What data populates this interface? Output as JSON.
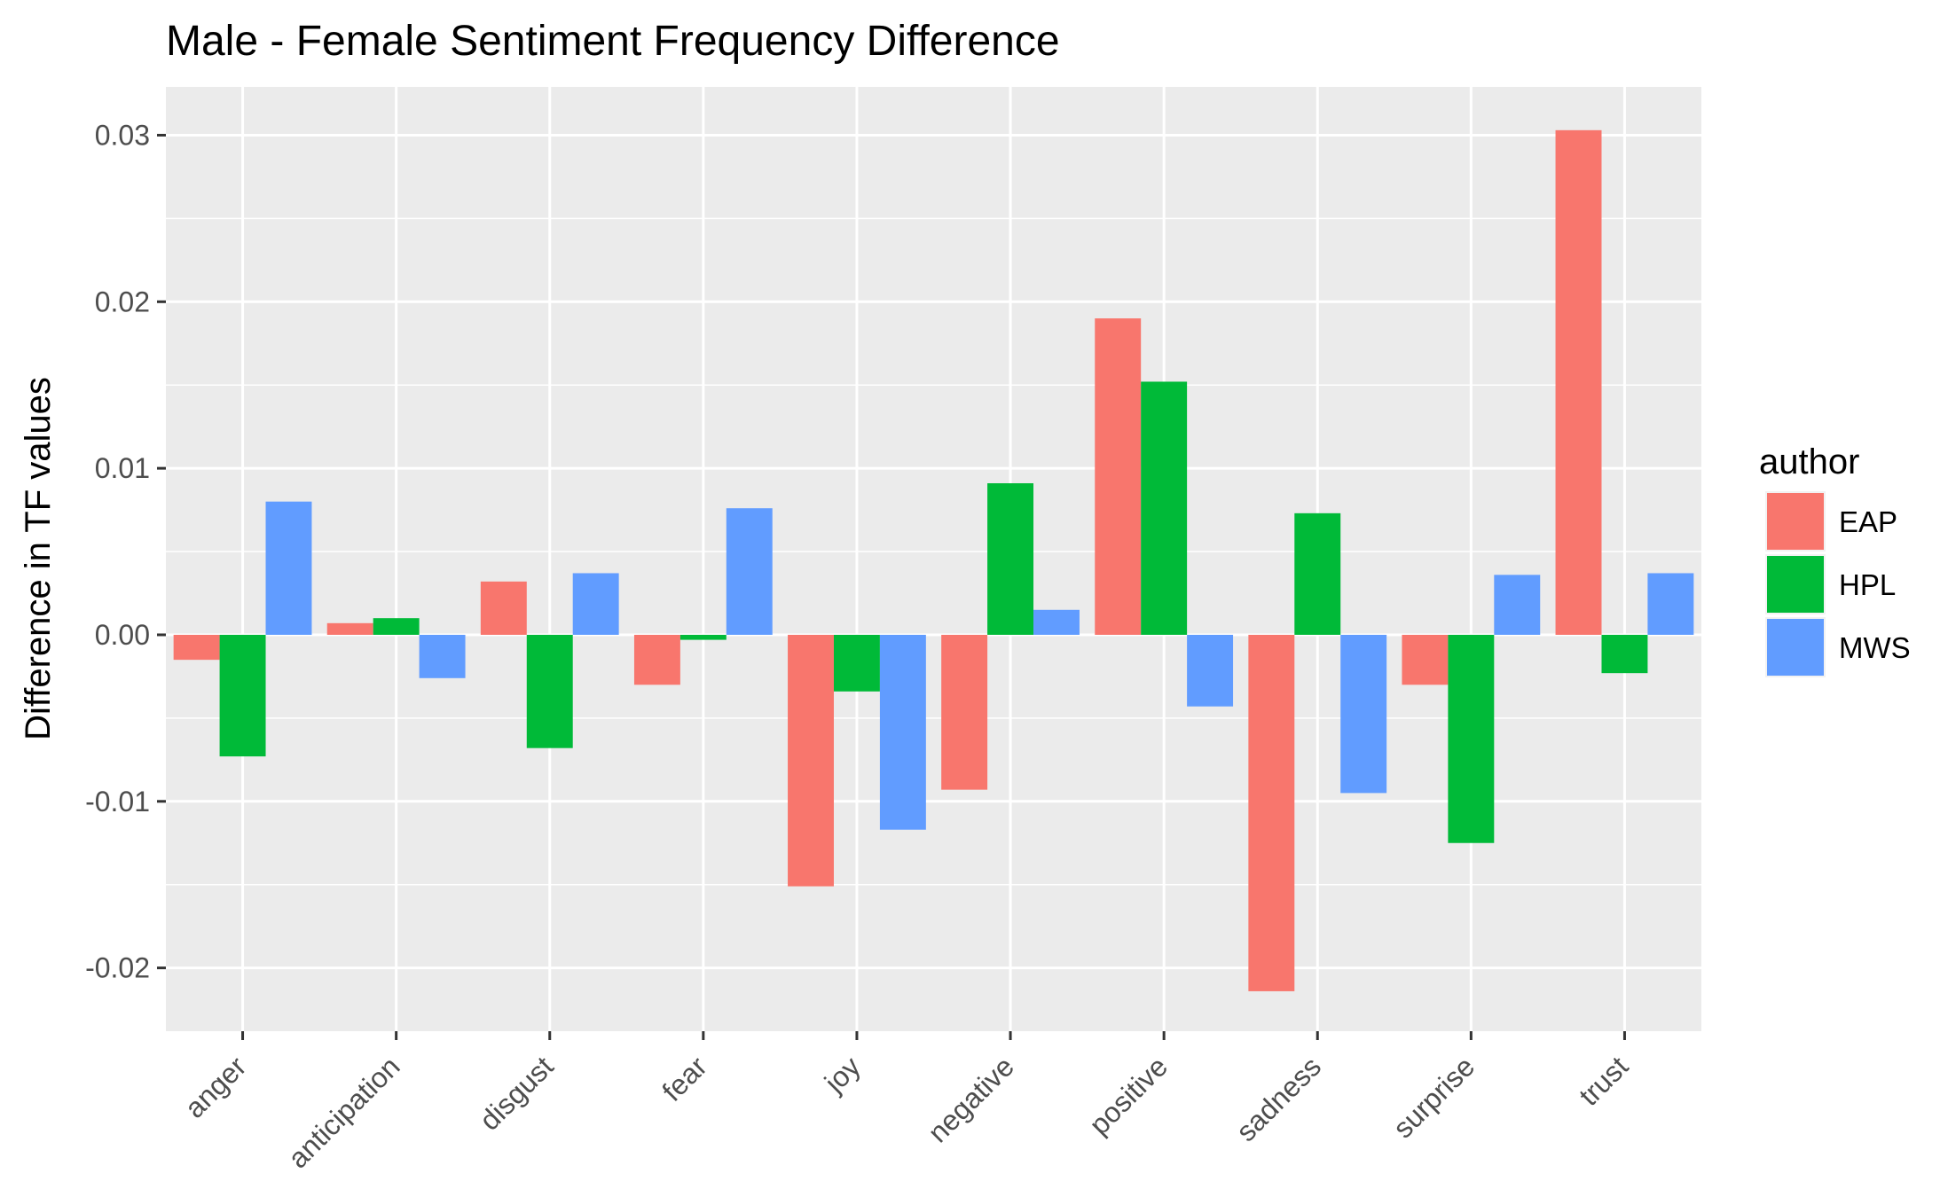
{
  "chart_data": {
    "type": "bar",
    "title": "Male - Female Sentiment Frequency Difference",
    "xlabel": "",
    "ylabel": "Difference in TF values",
    "categories": [
      "anger",
      "anticipation",
      "disgust",
      "fear",
      "joy",
      "negative",
      "positive",
      "sadness",
      "surprise",
      "trust"
    ],
    "series": [
      {
        "name": "EAP",
        "color": "#F8766D",
        "values": [
          -0.0015,
          0.0007,
          0.0032,
          -0.003,
          -0.0151,
          -0.0093,
          0.019,
          -0.0214,
          -0.003,
          0.0303
        ]
      },
      {
        "name": "HPL",
        "color": "#00BA38",
        "values": [
          -0.0073,
          0.001,
          -0.0068,
          -0.0003,
          -0.0034,
          0.0091,
          0.0152,
          0.0073,
          -0.0125,
          -0.0023
        ]
      },
      {
        "name": "MWS",
        "color": "#619CFF",
        "values": [
          0.008,
          -0.0026,
          0.0037,
          0.0076,
          -0.0117,
          0.0015,
          -0.0043,
          -0.0095,
          0.0036,
          0.0037
        ]
      }
    ],
    "yticks": [
      -0.02,
      -0.01,
      0.0,
      0.01,
      0.02,
      0.03
    ],
    "ytick_labels": [
      "-0.02",
      "-0.01",
      "0.00",
      "0.01",
      "0.02",
      "0.03"
    ],
    "ylim": [
      -0.0238,
      0.0329
    ],
    "grid": true,
    "legend": {
      "title": "author",
      "position": "right"
    },
    "panel_background": "#EBEBEB",
    "grid_color": "#FFFFFF"
  }
}
